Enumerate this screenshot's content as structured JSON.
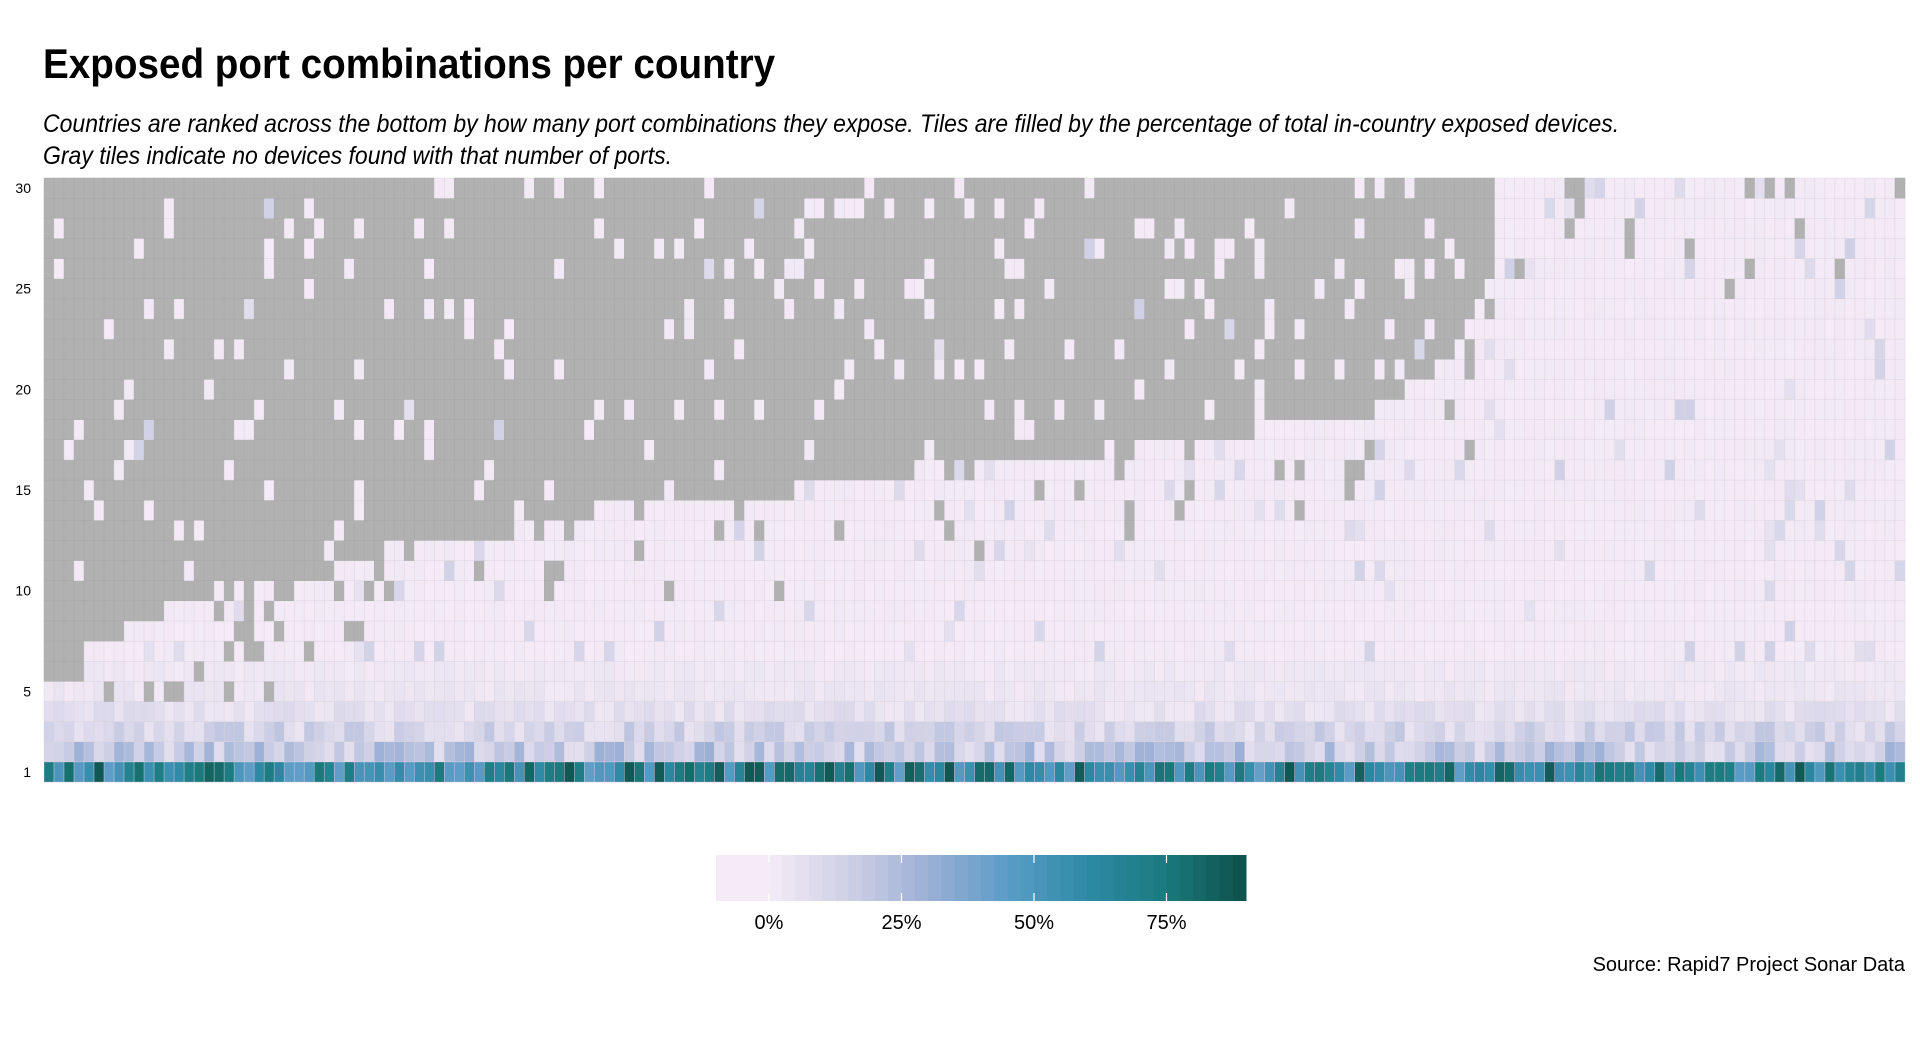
{
  "chart_data": {
    "type": "heatmap",
    "title": "Exposed port combinations per country",
    "subtitle": [
      "Countries are ranked across the bottom by how many port combinations they expose. Tiles are filled by the percentage of total in-country exposed devices.",
      "Gray tiles indicate no devices found with that number of ports."
    ],
    "source": "Source: Rapid7 Project Sonar Data",
    "n_countries": 186,
    "y_range": [
      1,
      30
    ],
    "y_ticks": [
      {
        "value": 1,
        "label": "1"
      },
      {
        "value": 5,
        "label": "5"
      },
      {
        "value": 10,
        "label": "10"
      },
      {
        "value": 15,
        "label": "15"
      },
      {
        "value": 20,
        "label": "20"
      },
      {
        "value": 25,
        "label": "25"
      },
      {
        "value": 30,
        "label": "30"
      }
    ],
    "fill_range": [
      0,
      90
    ],
    "legend_ticks": [
      {
        "value": 0,
        "label": "0%"
      },
      {
        "value": 25,
        "label": "25%"
      },
      {
        "value": 50,
        "label": "50%"
      },
      {
        "value": 75,
        "label": "75%"
      }
    ],
    "colors": {
      "no_devices": "#b1b1b1",
      "scale": [
        "#f4ebf6",
        "#cfd0e6",
        "#9cb0d6",
        "#5a9cc6",
        "#2e8aa6",
        "#1a7a7c",
        "#0e4f4a"
      ],
      "grid": "#d8d2dc"
    },
    "row_profiles": [
      {
        "ports": 1,
        "typical_percent": 65
      },
      {
        "ports": 2,
        "typical_percent": 18
      },
      {
        "ports": 3,
        "typical_percent": 12
      },
      {
        "ports": 4,
        "typical_percent": 6
      },
      {
        "ports": 5,
        "typical_percent": 3
      },
      {
        "ports": 6,
        "typical_percent": 2
      }
    ],
    "gray_region": {
      "description_rows_filled_above": "gray tiles appear for countries with fewer port combinations",
      "frontier": [
        {
          "country_rank": 1,
          "max_ports": 5
        },
        {
          "country_rank": 5,
          "max_ports": 7
        },
        {
          "country_rank": 9,
          "max_ports": 8
        },
        {
          "country_rank": 13,
          "max_ports": 9
        },
        {
          "country_rank": 18,
          "max_ports": 10
        },
        {
          "country_rank": 30,
          "max_ports": 11
        },
        {
          "country_rank": 38,
          "max_ports": 12
        },
        {
          "country_rank": 48,
          "max_ports": 13
        },
        {
          "country_rank": 56,
          "max_ports": 14
        },
        {
          "country_rank": 76,
          "max_ports": 15
        },
        {
          "country_rank": 88,
          "max_ports": 16
        },
        {
          "country_rank": 110,
          "max_ports": 17
        },
        {
          "country_rank": 123,
          "max_ports": 18
        },
        {
          "country_rank": 134,
          "max_ports": 19
        },
        {
          "country_rank": 137,
          "max_ports": 20
        },
        {
          "country_rank": 140,
          "max_ports": 21
        },
        {
          "country_rank": 142,
          "max_ports": 22
        },
        {
          "country_rank": 144,
          "max_ports": 24
        },
        {
          "country_rank": 145,
          "max_ports": 25
        },
        {
          "country_rank": 146,
          "max_ports": 30
        }
      ]
    }
  }
}
